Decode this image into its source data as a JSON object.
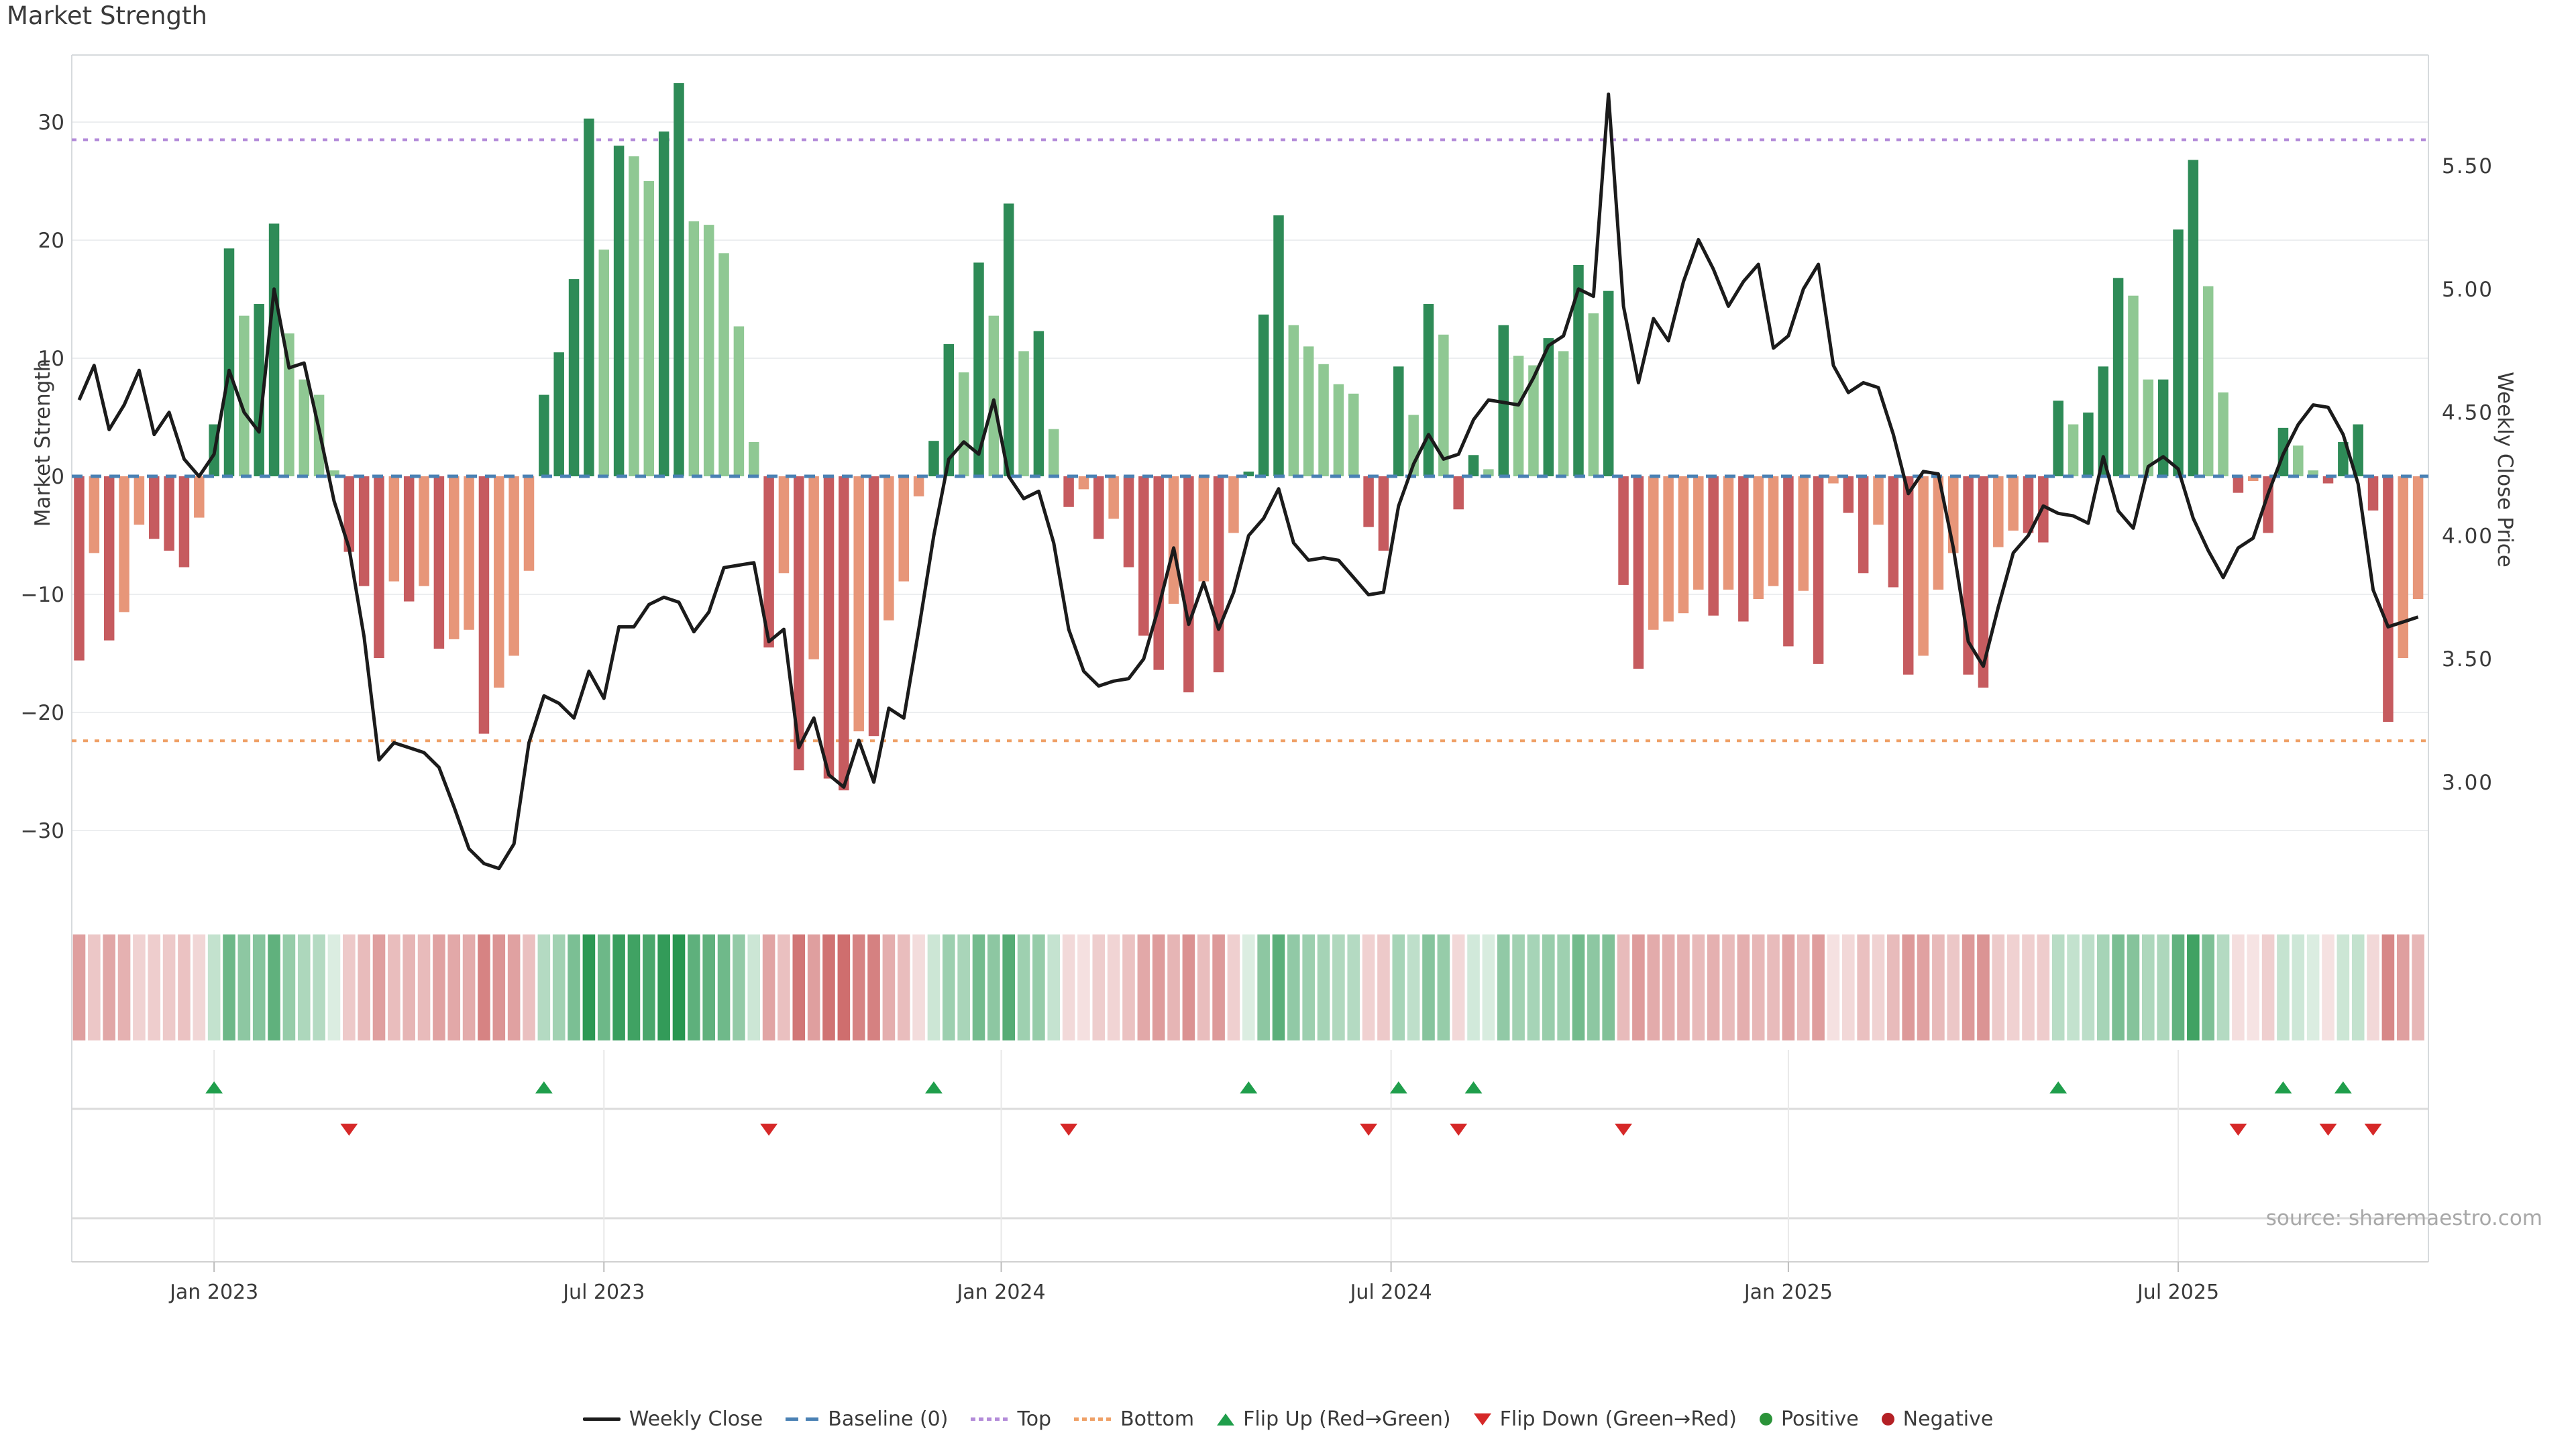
{
  "page": {
    "title": "Market Strength",
    "source": "source: sharemaestro.com"
  },
  "chart_data": {
    "type": "bar",
    "subtype": "weekly-strength-with-price-line-and-heatmap",
    "title": "Market Strength",
    "left_axis": {
      "label": "Market Strength",
      "tick_labels": [
        "30",
        "20",
        "10",
        "0",
        "−10",
        "−20",
        "−30"
      ],
      "tick_values": [
        30,
        20,
        10,
        0,
        -10,
        -20,
        -30
      ],
      "range": [
        -35.7,
        35.7
      ]
    },
    "right_axis": {
      "label": "Weekly Close Price",
      "tick_labels": [
        "5.50",
        "5.00",
        "4.50",
        "4.00",
        "3.50",
        "3.00"
      ],
      "tick_values": [
        5.5,
        5.0,
        4.5,
        4.0,
        3.5,
        3.0
      ],
      "range": [
        2.54,
        5.95
      ]
    },
    "x_axis": {
      "ticks": [
        {
          "label": "Jan 2023",
          "index": 9
        },
        {
          "label": "Jul 2023",
          "index": 35
        },
        {
          "label": "Jan 2024",
          "index": 61.5
        },
        {
          "label": "Jul 2024",
          "index": 87.5
        },
        {
          "label": "Jan 2025",
          "index": 114
        },
        {
          "label": "Jul 2025",
          "index": 140
        }
      ]
    },
    "reference_lines": {
      "baseline": {
        "label": "Baseline (0)",
        "value": 0
      },
      "top": {
        "label": "Top",
        "value": 28.5
      },
      "bottom": {
        "label": "Bottom",
        "value": -22.4
      }
    },
    "series": [
      {
        "name": "Market Strength",
        "type": "bar",
        "axis": "left",
        "values": [
          -15.6,
          -6.5,
          -13.9,
          -11.5,
          -4.1,
          -5.3,
          -6.3,
          -7.7,
          -3.5,
          4.4,
          19.3,
          13.6,
          14.6,
          21.4,
          12.1,
          8.2,
          6.9,
          0.5,
          -6.4,
          -9.3,
          -15.4,
          -8.9,
          -10.6,
          -9.3,
          -14.6,
          -13.8,
          -13.0,
          -21.8,
          -17.9,
          -15.2,
          -8.0,
          6.9,
          10.5,
          16.7,
          30.3,
          19.2,
          28.0,
          27.1,
          25.0,
          29.2,
          33.3,
          21.6,
          21.3,
          18.9,
          12.7,
          2.9,
          -14.5,
          -8.2,
          -24.9,
          -15.5,
          -25.6,
          -26.6,
          -21.6,
          -22.0,
          -12.2,
          -8.9,
          -1.7,
          3.0,
          11.2,
          8.8,
          18.1,
          13.6,
          23.1,
          10.6,
          12.3,
          4.0,
          -2.6,
          -1.1,
          -5.3,
          -3.6,
          -7.7,
          -13.5,
          -16.4,
          -10.8,
          -18.3,
          -8.9,
          -16.6,
          -4.8,
          0.4,
          13.7,
          22.1,
          12.8,
          11.0,
          9.5,
          7.8,
          7.0,
          -4.3,
          -6.3,
          9.3,
          5.2,
          14.6,
          12.0,
          -2.8,
          1.8,
          0.6,
          12.8,
          10.2,
          9.4,
          11.7,
          10.6,
          17.9,
          13.8,
          15.7,
          -9.2,
          -16.3,
          -13.0,
          -12.3,
          -11.6,
          -9.6,
          -11.8,
          -9.6,
          -12.3,
          -10.4,
          -9.3,
          -14.4,
          -9.7,
          -15.9,
          -0.6,
          -3.1,
          -8.2,
          -4.1,
          -9.4,
          -16.8,
          -15.2,
          -9.6,
          -6.5,
          -16.8,
          -17.9,
          -6.0,
          -4.6,
          -4.8,
          -5.6,
          6.4,
          4.4,
          5.4,
          9.3,
          16.8,
          15.3,
          8.2,
          8.2,
          20.9,
          26.8,
          16.1,
          7.1,
          -1.4,
          -0.4,
          -4.8,
          4.1,
          2.6,
          0.5,
          -0.6,
          2.9,
          4.4,
          -2.9,
          -20.8,
          -15.4,
          -10.4
        ]
      },
      {
        "name": "Weekly Close",
        "type": "line",
        "axis": "right",
        "values": [
          4.55,
          4.69,
          4.43,
          4.53,
          4.67,
          4.41,
          4.5,
          4.31,
          4.24,
          4.33,
          4.67,
          4.5,
          4.42,
          5.0,
          4.68,
          4.7,
          4.43,
          4.14,
          3.95,
          3.59,
          3.09,
          3.16,
          3.14,
          3.12,
          3.06,
          2.9,
          2.73,
          2.67,
          2.65,
          2.75,
          3.16,
          3.35,
          3.32,
          3.26,
          3.45,
          3.34,
          3.63,
          3.63,
          3.72,
          3.75,
          3.73,
          3.61,
          3.69,
          3.87,
          3.88,
          3.89,
          3.57,
          3.62,
          3.14,
          3.26,
          3.03,
          2.98,
          3.17,
          3.0,
          3.3,
          3.26,
          3.62,
          4.0,
          4.31,
          4.38,
          4.33,
          4.55,
          4.24,
          4.15,
          4.18,
          3.97,
          3.62,
          3.45,
          3.39,
          3.41,
          3.42,
          3.5,
          3.71,
          3.95,
          3.64,
          3.81,
          3.62,
          3.77,
          4.0,
          4.07,
          4.19,
          3.97,
          3.9,
          3.91,
          3.9,
          3.83,
          3.76,
          3.77,
          4.12,
          4.29,
          4.41,
          4.31,
          4.33,
          4.47,
          4.55,
          4.54,
          4.53,
          4.64,
          4.77,
          4.81,
          5.0,
          4.97,
          5.79,
          4.93,
          4.62,
          4.88,
          4.79,
          5.03,
          5.2,
          5.08,
          4.93,
          5.03,
          5.1,
          4.76,
          4.81,
          5.0,
          5.1,
          4.69,
          4.58,
          4.62,
          4.6,
          4.41,
          4.17,
          4.26,
          4.25,
          3.95,
          3.57,
          3.47,
          3.71,
          3.93,
          4.0,
          4.12,
          4.09,
          4.08,
          4.05,
          4.32,
          4.1,
          4.03,
          4.28,
          4.32,
          4.27,
          4.07,
          3.94,
          3.83,
          3.95,
          3.99,
          4.17,
          4.33,
          4.45,
          4.53,
          4.52,
          4.41,
          4.21,
          3.78,
          3.63,
          3.65,
          3.67
        ]
      }
    ],
    "flip_up_indices": [
      9,
      31,
      57,
      78,
      88,
      93,
      132,
      147,
      151
    ],
    "flip_down_indices": [
      18,
      46,
      66,
      86,
      92,
      103,
      144,
      150,
      153
    ],
    "heatmap": {
      "note": "weekly strip shaded by strength value",
      "scale_abs_max": 31
    },
    "legend": [
      {
        "label": "Weekly Close",
        "swatch": "line",
        "color": "#1b1b1b"
      },
      {
        "label": "Baseline (0)",
        "swatch": "dashes",
        "color": "#4a81b4"
      },
      {
        "label": "Top",
        "swatch": "dots",
        "color": "#b38bd9"
      },
      {
        "label": "Bottom",
        "swatch": "dots",
        "color": "#efa066"
      },
      {
        "label": "Flip Up (Red→Green)",
        "swatch": "tri-up",
        "color": "#1f9e4b"
      },
      {
        "label": "Flip Down (Green→Red)",
        "swatch": "tri-down",
        "color": "#d62828"
      },
      {
        "label": "Positive",
        "swatch": "circle",
        "color": "#2b9339"
      },
      {
        "label": "Negative",
        "swatch": "circle",
        "color": "#b42025"
      }
    ],
    "colors": {
      "bar_positive_strong": "#2e8b57",
      "bar_positive_weak": "#8fc893",
      "bar_negative_strong": "#c65b5f",
      "bar_negative_weak": "#e79679",
      "price_line": "#1b1b1b",
      "baseline": "#4a81b4",
      "top_line": "#b38bd9",
      "bottom_line": "#efa066",
      "flip_up": "#1f9e4b",
      "flip_down": "#d62828",
      "heat_green": "40,150,80",
      "heat_red": "200,90,90",
      "grid": "#eceef0",
      "spine": "#d7dadd",
      "panel_line": "#dbdbdb",
      "axis_line": "#d0d0d0",
      "tick_text": "#3a3a3a"
    },
    "layout_hints": {
      "grid": "horizontal-only",
      "legend_position": "bottom-center"
    }
  }
}
